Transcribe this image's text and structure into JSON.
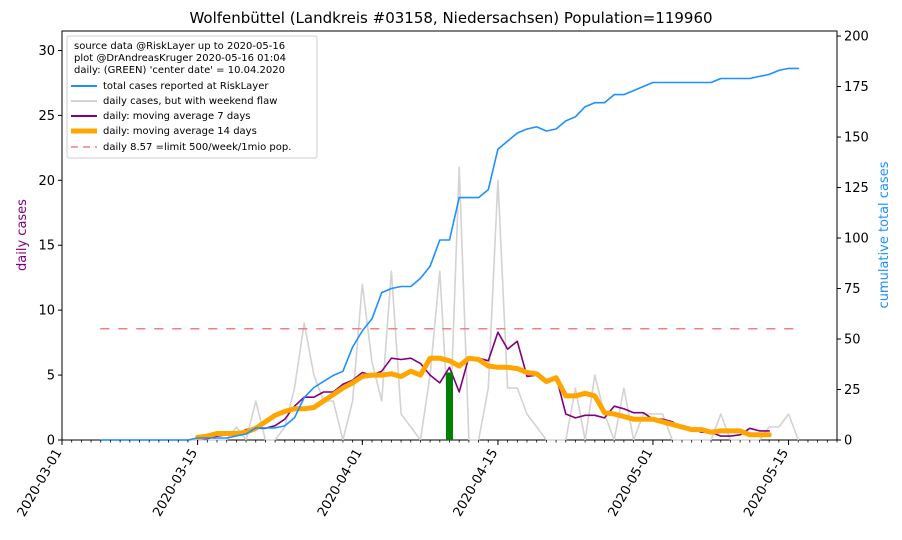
{
  "chart_data": {
    "type": "line",
    "title": "Wolfenbüttel (Landkreis #03158, Niedersachsen) Population=119960",
    "ylabel_left": "daily cases",
    "ylabel_right": "cumulative total cases",
    "colors": {
      "left_label": "#800080",
      "right_label": "#1e90ff",
      "total": "#1e90ff",
      "daily": "#d3d3d3",
      "ma7": "#800080",
      "ma14": "#ffa500",
      "limit": "#f08080",
      "center_bar": "#008000"
    },
    "ylim_left": [
      0,
      31.5
    ],
    "ylim_right": [
      0,
      202.5
    ],
    "xlim": [
      "2020-03-01",
      "2020-05-20"
    ],
    "x_tick_labels": [
      "2020-03-01",
      "2020-03-15",
      "2020-04-01",
      "2020-04-15",
      "2020-05-01",
      "2020-05-15"
    ],
    "y_left_ticks": [
      "0",
      "5",
      "10",
      "15",
      "20",
      "25",
      "30"
    ],
    "y_right_ticks": [
      "0",
      "25",
      "50",
      "75",
      "100",
      "125",
      "150",
      "175",
      "200"
    ],
    "legend_position": "top-left",
    "legend_text": [
      "source data @RiskLayer up to 2020-05-16",
      "plot @DrAndreasKruger 2020-05-16 01:04",
      "daily: (GREEN) 'center date' = 10.04.2020"
    ],
    "center_bar": {
      "date": "2020-04-10",
      "value": 5.2
    },
    "series": [
      {
        "name": "total cases reported at RiskLayer",
        "axis": "right",
        "x": [
          "2020-03-05",
          "2020-03-06",
          "2020-03-07",
          "2020-03-08",
          "2020-03-09",
          "2020-03-10",
          "2020-03-11",
          "2020-03-12",
          "2020-03-13",
          "2020-03-14",
          "2020-03-15",
          "2020-03-16",
          "2020-03-17",
          "2020-03-18",
          "2020-03-19",
          "2020-03-20",
          "2020-03-21",
          "2020-03-22",
          "2020-03-23",
          "2020-03-24",
          "2020-03-25",
          "2020-03-26",
          "2020-03-27",
          "2020-03-28",
          "2020-03-29",
          "2020-03-30",
          "2020-03-31",
          "2020-04-01",
          "2020-04-02",
          "2020-04-03",
          "2020-04-04",
          "2020-04-05",
          "2020-04-06",
          "2020-04-07",
          "2020-04-08",
          "2020-04-09",
          "2020-04-10",
          "2020-04-11",
          "2020-04-12",
          "2020-04-13",
          "2020-04-14",
          "2020-04-15",
          "2020-04-16",
          "2020-04-17",
          "2020-04-18",
          "2020-04-19",
          "2020-04-20",
          "2020-04-21",
          "2020-04-22",
          "2020-04-23",
          "2020-04-24",
          "2020-04-25",
          "2020-04-26",
          "2020-04-27",
          "2020-04-28",
          "2020-04-29",
          "2020-04-30",
          "2020-05-01",
          "2020-05-02",
          "2020-05-03",
          "2020-05-04",
          "2020-05-05",
          "2020-05-06",
          "2020-05-07",
          "2020-05-08",
          "2020-05-09",
          "2020-05-10",
          "2020-05-11",
          "2020-05-12",
          "2020-05-13",
          "2020-05-14",
          "2020-05-15",
          "2020-05-16"
        ],
        "values": [
          0,
          0,
          0,
          0,
          0,
          0,
          0,
          0,
          0,
          0,
          1,
          1,
          1,
          1,
          2,
          3,
          6,
          6,
          6,
          7,
          11,
          21,
          26,
          29,
          32,
          34,
          46,
          54,
          60,
          73,
          75,
          76,
          76,
          80,
          86,
          99,
          99,
          120,
          120,
          120,
          124,
          144,
          148,
          152,
          154,
          155,
          153,
          154,
          158,
          160,
          165,
          167,
          167,
          171,
          171,
          173,
          175,
          177,
          177,
          177,
          177,
          177,
          177,
          177,
          179,
          179,
          179,
          179,
          180,
          181,
          183,
          184,
          184
        ]
      },
      {
        "name": "daily cases, but with weekend flaw",
        "axis": "left",
        "x": [
          "2020-03-05",
          "2020-03-06",
          "2020-03-07",
          "2020-03-08",
          "2020-03-09",
          "2020-03-10",
          "2020-03-11",
          "2020-03-12",
          "2020-03-13",
          "2020-03-14",
          "2020-03-15",
          "2020-03-16",
          "2020-03-17",
          "2020-03-18",
          "2020-03-19",
          "2020-03-20",
          "2020-03-21",
          "2020-03-22",
          "2020-03-23",
          "2020-03-24",
          "2020-03-25",
          "2020-03-26",
          "2020-03-27",
          "2020-03-28",
          "2020-03-29",
          "2020-03-30",
          "2020-03-31",
          "2020-04-01",
          "2020-04-02",
          "2020-04-03",
          "2020-04-04",
          "2020-04-05",
          "2020-04-06",
          "2020-04-07",
          "2020-04-08",
          "2020-04-09",
          "2020-04-10",
          "2020-04-11",
          "2020-04-12",
          "2020-04-13",
          "2020-04-14",
          "2020-04-15",
          "2020-04-16",
          "2020-04-17",
          "2020-04-18",
          "2020-04-19",
          "2020-04-20",
          "2020-04-21",
          "2020-04-22",
          "2020-04-23",
          "2020-04-24",
          "2020-04-25",
          "2020-04-26",
          "2020-04-27",
          "2020-04-28",
          "2020-04-29",
          "2020-04-30",
          "2020-05-01",
          "2020-05-02",
          "2020-05-03",
          "2020-05-04",
          "2020-05-05",
          "2020-05-06",
          "2020-05-07",
          "2020-05-08",
          "2020-05-09",
          "2020-05-10",
          "2020-05-11",
          "2020-05-12",
          "2020-05-13",
          "2020-05-14",
          "2020-05-15",
          "2020-05-16"
        ],
        "values": [
          0,
          0,
          0,
          0,
          0,
          0,
          0,
          0,
          0,
          0,
          0,
          0,
          0,
          0,
          1,
          0,
          3,
          0,
          0,
          1,
          4,
          9,
          5,
          3,
          3,
          0,
          3,
          12,
          6,
          3,
          13,
          2,
          1,
          0,
          5,
          13,
          0,
          21,
          0,
          0,
          4,
          20,
          4,
          4,
          2,
          1,
          0,
          0,
          0,
          4,
          0,
          5,
          2,
          0,
          4,
          0,
          2,
          2,
          2,
          0,
          0,
          0,
          0,
          0,
          2,
          0,
          0,
          0,
          0,
          1,
          1,
          2,
          0
        ]
      },
      {
        "name": "daily: moving average 7 days",
        "axis": "left",
        "x": [
          "2020-03-15",
          "2020-03-16",
          "2020-03-17",
          "2020-03-18",
          "2020-03-19",
          "2020-03-20",
          "2020-03-21",
          "2020-03-22",
          "2020-03-23",
          "2020-03-24",
          "2020-03-25",
          "2020-03-26",
          "2020-03-27",
          "2020-03-28",
          "2020-03-29",
          "2020-03-30",
          "2020-03-31",
          "2020-04-01",
          "2020-04-02",
          "2020-04-03",
          "2020-04-04",
          "2020-04-05",
          "2020-04-06",
          "2020-04-07",
          "2020-04-08",
          "2020-04-09",
          "2020-04-10",
          "2020-04-11",
          "2020-04-12",
          "2020-04-13",
          "2020-04-14",
          "2020-04-15",
          "2020-04-16",
          "2020-04-17",
          "2020-04-18",
          "2020-04-19",
          "2020-04-20",
          "2020-04-21",
          "2020-04-22",
          "2020-04-23",
          "2020-04-24",
          "2020-04-25",
          "2020-04-26",
          "2020-04-27",
          "2020-04-28",
          "2020-04-29",
          "2020-04-30",
          "2020-05-01",
          "2020-05-02",
          "2020-05-03",
          "2020-05-04",
          "2020-05-05",
          "2020-05-06",
          "2020-05-07",
          "2020-05-08",
          "2020-05-09",
          "2020-05-10",
          "2020-05-11",
          "2020-05-12",
          "2020-05-13"
        ],
        "values": [
          0.1,
          0.1,
          0.3,
          0.4,
          0.4,
          0.8,
          0.9,
          0.9,
          1.1,
          1.6,
          2.6,
          3.3,
          3.3,
          3.7,
          3.7,
          4.3,
          4.6,
          5.2,
          5.0,
          5.3,
          6.3,
          6.2,
          6.3,
          5.9,
          5.0,
          4.4,
          5.6,
          3.7,
          6.4,
          6.3,
          6.1,
          8.3,
          7.0,
          7.6,
          4.9,
          5.0,
          4.6,
          4.9,
          2.0,
          1.7,
          1.9,
          1.9,
          1.7,
          2.6,
          2.4,
          2.1,
          2.1,
          1.6,
          1.6,
          1.4,
          0.9,
          0.9,
          0.6,
          0.6,
          0.3,
          0.3,
          0.4,
          0.9,
          0.7,
          0.7
        ]
      },
      {
        "name": "daily: moving average 14 days",
        "axis": "left",
        "x": [
          "2020-03-15",
          "2020-03-16",
          "2020-03-17",
          "2020-03-18",
          "2020-03-19",
          "2020-03-20",
          "2020-03-21",
          "2020-03-22",
          "2020-03-23",
          "2020-03-24",
          "2020-03-25",
          "2020-03-26",
          "2020-03-27",
          "2020-03-28",
          "2020-03-29",
          "2020-03-30",
          "2020-03-31",
          "2020-04-01",
          "2020-04-02",
          "2020-04-03",
          "2020-04-04",
          "2020-04-05",
          "2020-04-06",
          "2020-04-07",
          "2020-04-08",
          "2020-04-09",
          "2020-04-10",
          "2020-04-11",
          "2020-04-12",
          "2020-04-13",
          "2020-04-14",
          "2020-04-15",
          "2020-04-16",
          "2020-04-17",
          "2020-04-18",
          "2020-04-19",
          "2020-04-20",
          "2020-04-21",
          "2020-04-22",
          "2020-04-23",
          "2020-04-24",
          "2020-04-25",
          "2020-04-26",
          "2020-04-27",
          "2020-04-28",
          "2020-04-29",
          "2020-04-30",
          "2020-05-01",
          "2020-05-02",
          "2020-05-03",
          "2020-05-04",
          "2020-05-05",
          "2020-05-06",
          "2020-05-07",
          "2020-05-08",
          "2020-05-09",
          "2020-05-10",
          "2020-05-11",
          "2020-05-12",
          "2020-05-13"
        ],
        "values": [
          0.2,
          0.3,
          0.5,
          0.5,
          0.5,
          0.6,
          0.9,
          1.4,
          1.9,
          2.2,
          2.4,
          2.4,
          2.5,
          3.0,
          3.5,
          4.0,
          4.4,
          4.9,
          5.0,
          5.0,
          5.1,
          4.9,
          5.3,
          5.0,
          6.3,
          6.3,
          6.1,
          5.7,
          6.3,
          6.2,
          5.7,
          5.6,
          5.6,
          5.5,
          5.2,
          5.1,
          4.5,
          4.8,
          3.4,
          3.4,
          3.6,
          3.4,
          2.1,
          2.0,
          1.8,
          1.6,
          1.6,
          1.6,
          1.4,
          1.2,
          1.0,
          0.8,
          0.8,
          0.6,
          0.7,
          0.7,
          0.7,
          0.4,
          0.4,
          0.4
        ]
      },
      {
        "name": "daily 8.57 =limit 500/week/1mio pop.",
        "axis": "left",
        "x": [
          "2020-03-05",
          "2020-05-16"
        ],
        "values": [
          8.57,
          8.57
        ]
      }
    ]
  }
}
